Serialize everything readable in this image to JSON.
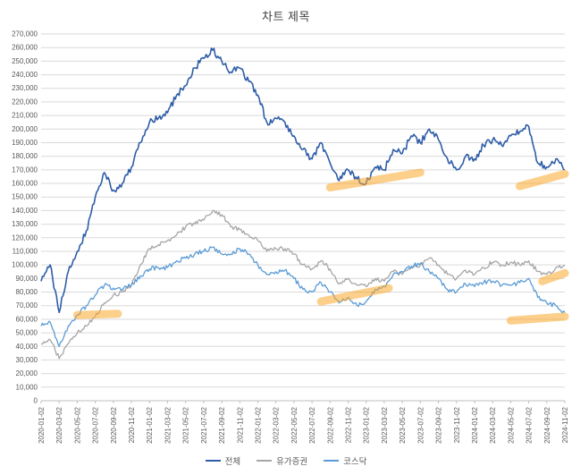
{
  "chart_data": {
    "type": "line",
    "title": "차트 제목",
    "xlabel": "",
    "ylabel": "",
    "ylim": [
      0,
      270000
    ],
    "ytick_step": 10000,
    "grid": true,
    "legend_position": "bottom",
    "x_labels": [
      "2020-01-02",
      "2020-03-02",
      "2020-05-02",
      "2020-07-02",
      "2020-09-02",
      "2020-11-02",
      "2021-01-02",
      "2021-03-02",
      "2021-05-02",
      "2021-07-02",
      "2021-09-02",
      "2021-11-02",
      "2022-01-02",
      "2022-03-02",
      "2022-05-02",
      "2022-07-02",
      "2022-09-02",
      "2022-11-02",
      "2023-01-02",
      "2023-03-02",
      "2023-05-02",
      "2023-07-02",
      "2023-09-02",
      "2023-11-02",
      "2024-01-02",
      "2024-03-02",
      "2024-05-02",
      "2024-07-02",
      "2024-09-02",
      "2024-11-02"
    ],
    "x_label_interval_months": 2,
    "series": [
      {
        "name": "전체",
        "color": "#2e5da8",
        "values": [
          88000,
          100000,
          65000,
          95000,
          110000,
          125000,
          150000,
          168000,
          155000,
          160000,
          172000,
          190000,
          205000,
          208000,
          212000,
          225000,
          232000,
          245000,
          252000,
          258000,
          250000,
          242000,
          245000,
          235000,
          225000,
          205000,
          208000,
          205000,
          195000,
          185000,
          178000,
          190000,
          175000,
          162000,
          170000,
          163000,
          160000,
          172000,
          170000,
          185000,
          182000,
          195000,
          190000,
          200000,
          192000,
          178000,
          170000,
          180000,
          178000,
          188000,
          192000,
          188000,
          195000,
          198000,
          202000,
          175000,
          172000,
          178000,
          170000
        ]
      },
      {
        "name": "유가증권",
        "color": "#a6a6a6",
        "values": [
          42000,
          45000,
          31000,
          42000,
          50000,
          55000,
          62000,
          72000,
          78000,
          80000,
          85000,
          100000,
          112000,
          115000,
          118000,
          122000,
          128000,
          130000,
          133000,
          140000,
          137000,
          128000,
          126000,
          122000,
          118000,
          110000,
          112000,
          112000,
          108000,
          100000,
          97000,
          103000,
          97000,
          86000,
          90000,
          85000,
          84000,
          90000,
          88000,
          95000,
          93000,
          98000,
          100000,
          105000,
          100000,
          93000,
          90000,
          96000,
          93000,
          98000,
          102000,
          100000,
          102000,
          100000,
          103000,
          95000,
          93000,
          98000,
          100000
        ]
      },
      {
        "name": "코스닥",
        "color": "#5b9bd5",
        "values": [
          55000,
          58000,
          40000,
          55000,
          63000,
          70000,
          78000,
          85000,
          83000,
          82000,
          85000,
          92000,
          97000,
          98000,
          98000,
          103000,
          105000,
          108000,
          110000,
          113000,
          108000,
          108000,
          112000,
          108000,
          100000,
          93000,
          95000,
          96000,
          90000,
          82000,
          80000,
          87000,
          80000,
          72000,
          76000,
          70000,
          73000,
          82000,
          84000,
          93000,
          95000,
          99000,
          101000,
          95000,
          90000,
          82000,
          80000,
          86000,
          84000,
          87000,
          88000,
          85000,
          85000,
          87000,
          90000,
          76000,
          72000,
          70000,
          65000
        ]
      }
    ],
    "highlight_color": "#fba92c",
    "highlights": [
      {
        "x1": 4.0,
        "y1": 63000,
        "x2": 8.5,
        "y2": 64000
      },
      {
        "x1": 32.0,
        "y1": 157000,
        "x2": 42.0,
        "y2": 168000
      },
      {
        "x1": 31.0,
        "y1": 73000,
        "x2": 38.5,
        "y2": 83000
      },
      {
        "x1": 53.0,
        "y1": 158000,
        "x2": 58.0,
        "y2": 167000
      },
      {
        "x1": 55.5,
        "y1": 88000,
        "x2": 58.0,
        "y2": 94000
      },
      {
        "x1": 52.0,
        "y1": 59000,
        "x2": 58.0,
        "y2": 62000
      }
    ]
  },
  "legend": {
    "items": [
      {
        "label": "전체"
      },
      {
        "label": "유가증권"
      },
      {
        "label": "코스닥"
      }
    ]
  }
}
